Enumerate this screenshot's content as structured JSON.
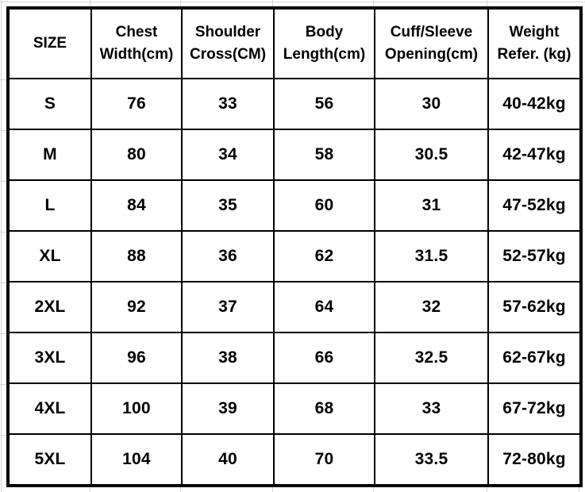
{
  "chart_data": {
    "type": "table",
    "columns": [
      "SIZE",
      "Chest Width(cm)",
      "Shoulder Cross(CM)",
      "Body Length(cm)",
      "Cuff/Sleeve Opening(cm)",
      "Weight Refer. (kg)"
    ],
    "rows": [
      [
        "S",
        "76",
        "33",
        "56",
        "30",
        "40-42kg"
      ],
      [
        "M",
        "80",
        "34",
        "58",
        "30.5",
        "42-47kg"
      ],
      [
        "L",
        "84",
        "35",
        "60",
        "31",
        "47-52kg"
      ],
      [
        "XL",
        "88",
        "36",
        "62",
        "31.5",
        "52-57kg"
      ],
      [
        "2XL",
        "92",
        "37",
        "64",
        "32",
        "57-62kg"
      ],
      [
        "3XL",
        "96",
        "38",
        "66",
        "32.5",
        "62-67kg"
      ],
      [
        "4XL",
        "100",
        "39",
        "68",
        "33",
        "67-72kg"
      ],
      [
        "5XL",
        "104",
        "40",
        "70",
        "33.5",
        "72-80kg"
      ]
    ]
  },
  "display": {
    "header_lines": [
      {
        "l1": "SIZE"
      },
      {
        "l1": "Chest",
        "l2": "Width(cm)"
      },
      {
        "l1": "Shoulder",
        "l2": "Cross(CM)"
      },
      {
        "l1": "Body",
        "l2": "Length(cm)"
      },
      {
        "l1": "Cuff/Sleeve",
        "l2": "Opening(cm)"
      },
      {
        "l1": "Weight",
        "l2": "Refer. (kg)"
      }
    ]
  },
  "theme": {
    "background": "#ffffff",
    "text_color": "#000000",
    "table_border_color": "#000000",
    "outer_gridline_color": "#d6d6d6"
  }
}
